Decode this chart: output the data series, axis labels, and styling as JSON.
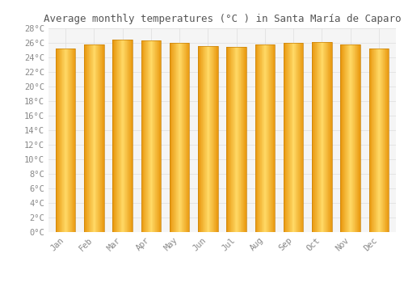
{
  "title": "Average monthly temperatures (°C ) in Santa María de Caparo",
  "months": [
    "Jan",
    "Feb",
    "Mar",
    "Apr",
    "May",
    "Jun",
    "Jul",
    "Aug",
    "Sep",
    "Oct",
    "Nov",
    "Dec"
  ],
  "temperatures": [
    25.2,
    25.8,
    26.5,
    26.3,
    26.0,
    25.6,
    25.4,
    25.8,
    26.0,
    26.1,
    25.8,
    25.2
  ],
  "ylim": [
    0,
    28
  ],
  "yticks": [
    0,
    2,
    4,
    6,
    8,
    10,
    12,
    14,
    16,
    18,
    20,
    22,
    24,
    26,
    28
  ],
  "bar_color_center": "#FFD966",
  "bar_color_edge": "#E8960C",
  "bar_edge_color": "#C8820A",
  "background_color": "#FFFFFF",
  "plot_bg_color": "#F5F5F5",
  "grid_color": "#DDDDDD",
  "title_fontsize": 9,
  "tick_fontsize": 7.5,
  "tick_color": "#888888",
  "title_color": "#555555"
}
